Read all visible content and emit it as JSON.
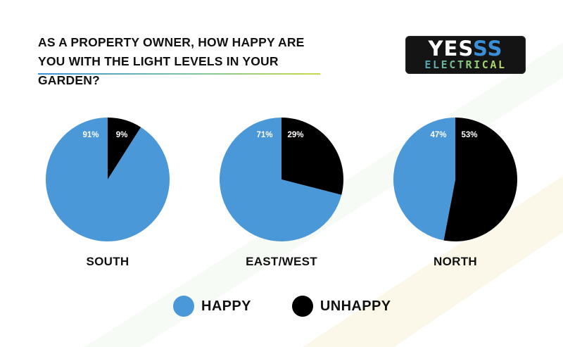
{
  "title_lines": [
    "As a property owner, how happy are",
    "you with the light levels in your garden?"
  ],
  "logo": {
    "line1_white": "YES",
    "line1_blue": "SS",
    "line2": "ELECTRICAL"
  },
  "colors": {
    "happy": "#4a98d8",
    "unhappy": "#000000",
    "title_rule_start": "#3b8fd6",
    "title_rule_end": "#c9d94a"
  },
  "chart_data": [
    {
      "type": "pie",
      "title": "SOUTH",
      "slices": [
        {
          "name": "HAPPY",
          "value": 91,
          "label": "91%"
        },
        {
          "name": "UNHAPPY",
          "value": 9,
          "label": "9%"
        }
      ]
    },
    {
      "type": "pie",
      "title": "EAST/WEST",
      "slices": [
        {
          "name": "HAPPY",
          "value": 71,
          "label": "71%"
        },
        {
          "name": "UNHAPPY",
          "value": 29,
          "label": "29%"
        }
      ]
    },
    {
      "type": "pie",
      "title": "NORTH",
      "slices": [
        {
          "name": "HAPPY",
          "value": 47,
          "label": "47%"
        },
        {
          "name": "UNHAPPY",
          "value": 53,
          "label": "53%"
        }
      ]
    }
  ],
  "legend": [
    {
      "name": "HAPPY",
      "color_key": "happy"
    },
    {
      "name": "UNHAPPY",
      "color_key": "unhappy"
    }
  ]
}
